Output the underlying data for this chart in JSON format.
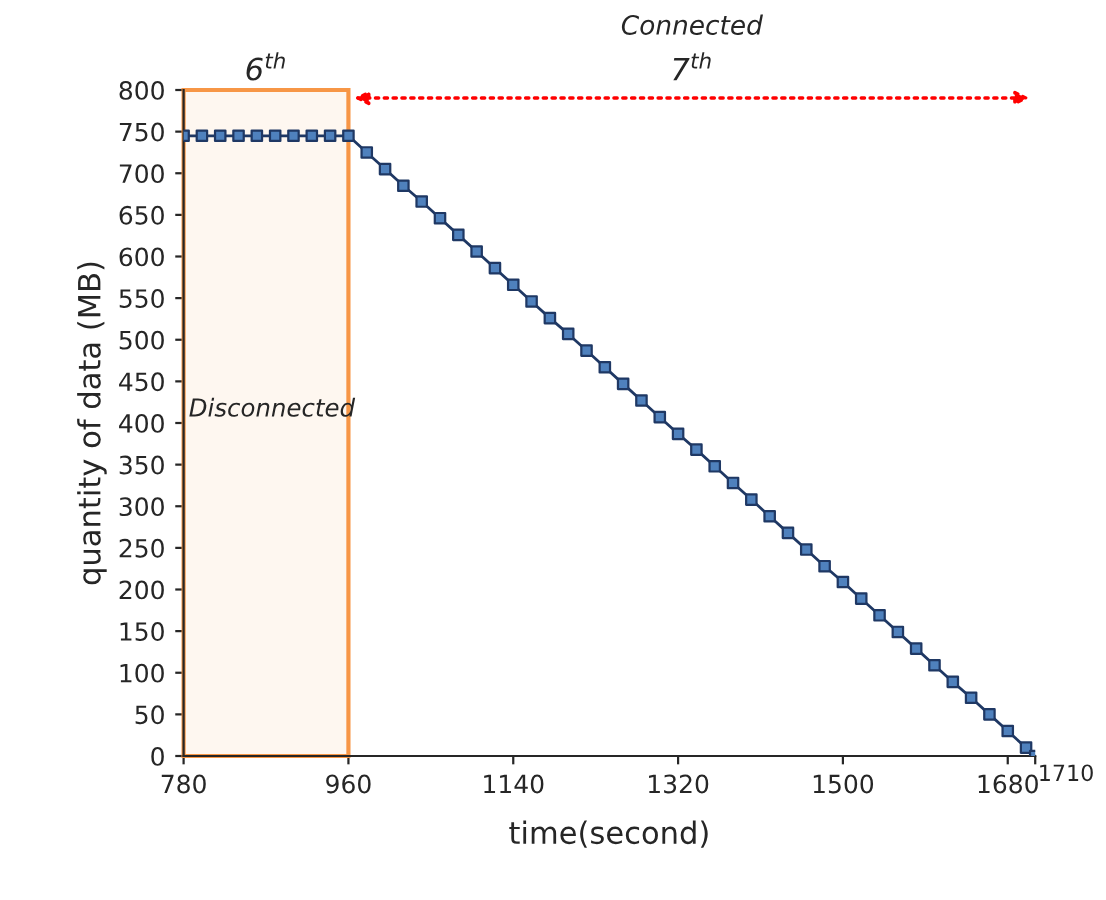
{
  "chart_data": {
    "type": "line",
    "xlabel": "time(second)",
    "ylabel": "quantity of data (MB)",
    "series": [
      {
        "color": "#1f3864",
        "x": [
          780,
          800,
          820,
          840,
          860,
          880,
          900,
          920,
          940,
          960,
          980,
          1000,
          1020,
          1040,
          1060,
          1080,
          1100,
          1120,
          1140,
          1160,
          1180,
          1200,
          1220,
          1240,
          1260,
          1280,
          1300,
          1320,
          1340,
          1360,
          1380,
          1400,
          1420,
          1440,
          1460,
          1480,
          1500,
          1520,
          1540,
          1560,
          1580,
          1600,
          1620,
          1640,
          1660,
          1680,
          1700,
          1710
        ],
        "values": [
          745,
          745,
          745,
          745,
          745,
          745,
          745,
          745,
          745,
          745,
          725,
          705,
          685,
          666,
          646,
          626,
          606,
          586,
          566,
          546,
          526,
          507,
          487,
          467,
          447,
          427,
          407,
          387,
          368,
          348,
          328,
          308,
          288,
          268,
          248,
          228,
          209,
          189,
          169,
          149,
          129,
          109,
          89,
          70,
          50,
          30,
          10,
          0
        ]
      }
    ],
    "marker": "square",
    "line_style": "solid",
    "xlim": [
      780,
      1710
    ],
    "xticks": [
      780,
      960,
      1140,
      1320,
      1500,
      1680,
      {
        "value": 1710,
        "label": null
      }
    ],
    "ylim": [
      0,
      800
    ],
    "yticks": [
      0,
      50,
      100,
      150,
      200,
      250,
      300,
      350,
      400,
      450,
      500,
      550,
      600,
      650,
      700,
      750,
      800
    ],
    "grid": false,
    "legend": false,
    "bands": [
      {
        "axis": "x",
        "from": 780,
        "to": 960,
        "label": "6$^{th}$",
        "color": "#f79646"
      }
    ],
    "annotations": [
      "Disconnected",
      "Connected",
      "7$^{th}$",
      "1710"
    ]
  }
}
